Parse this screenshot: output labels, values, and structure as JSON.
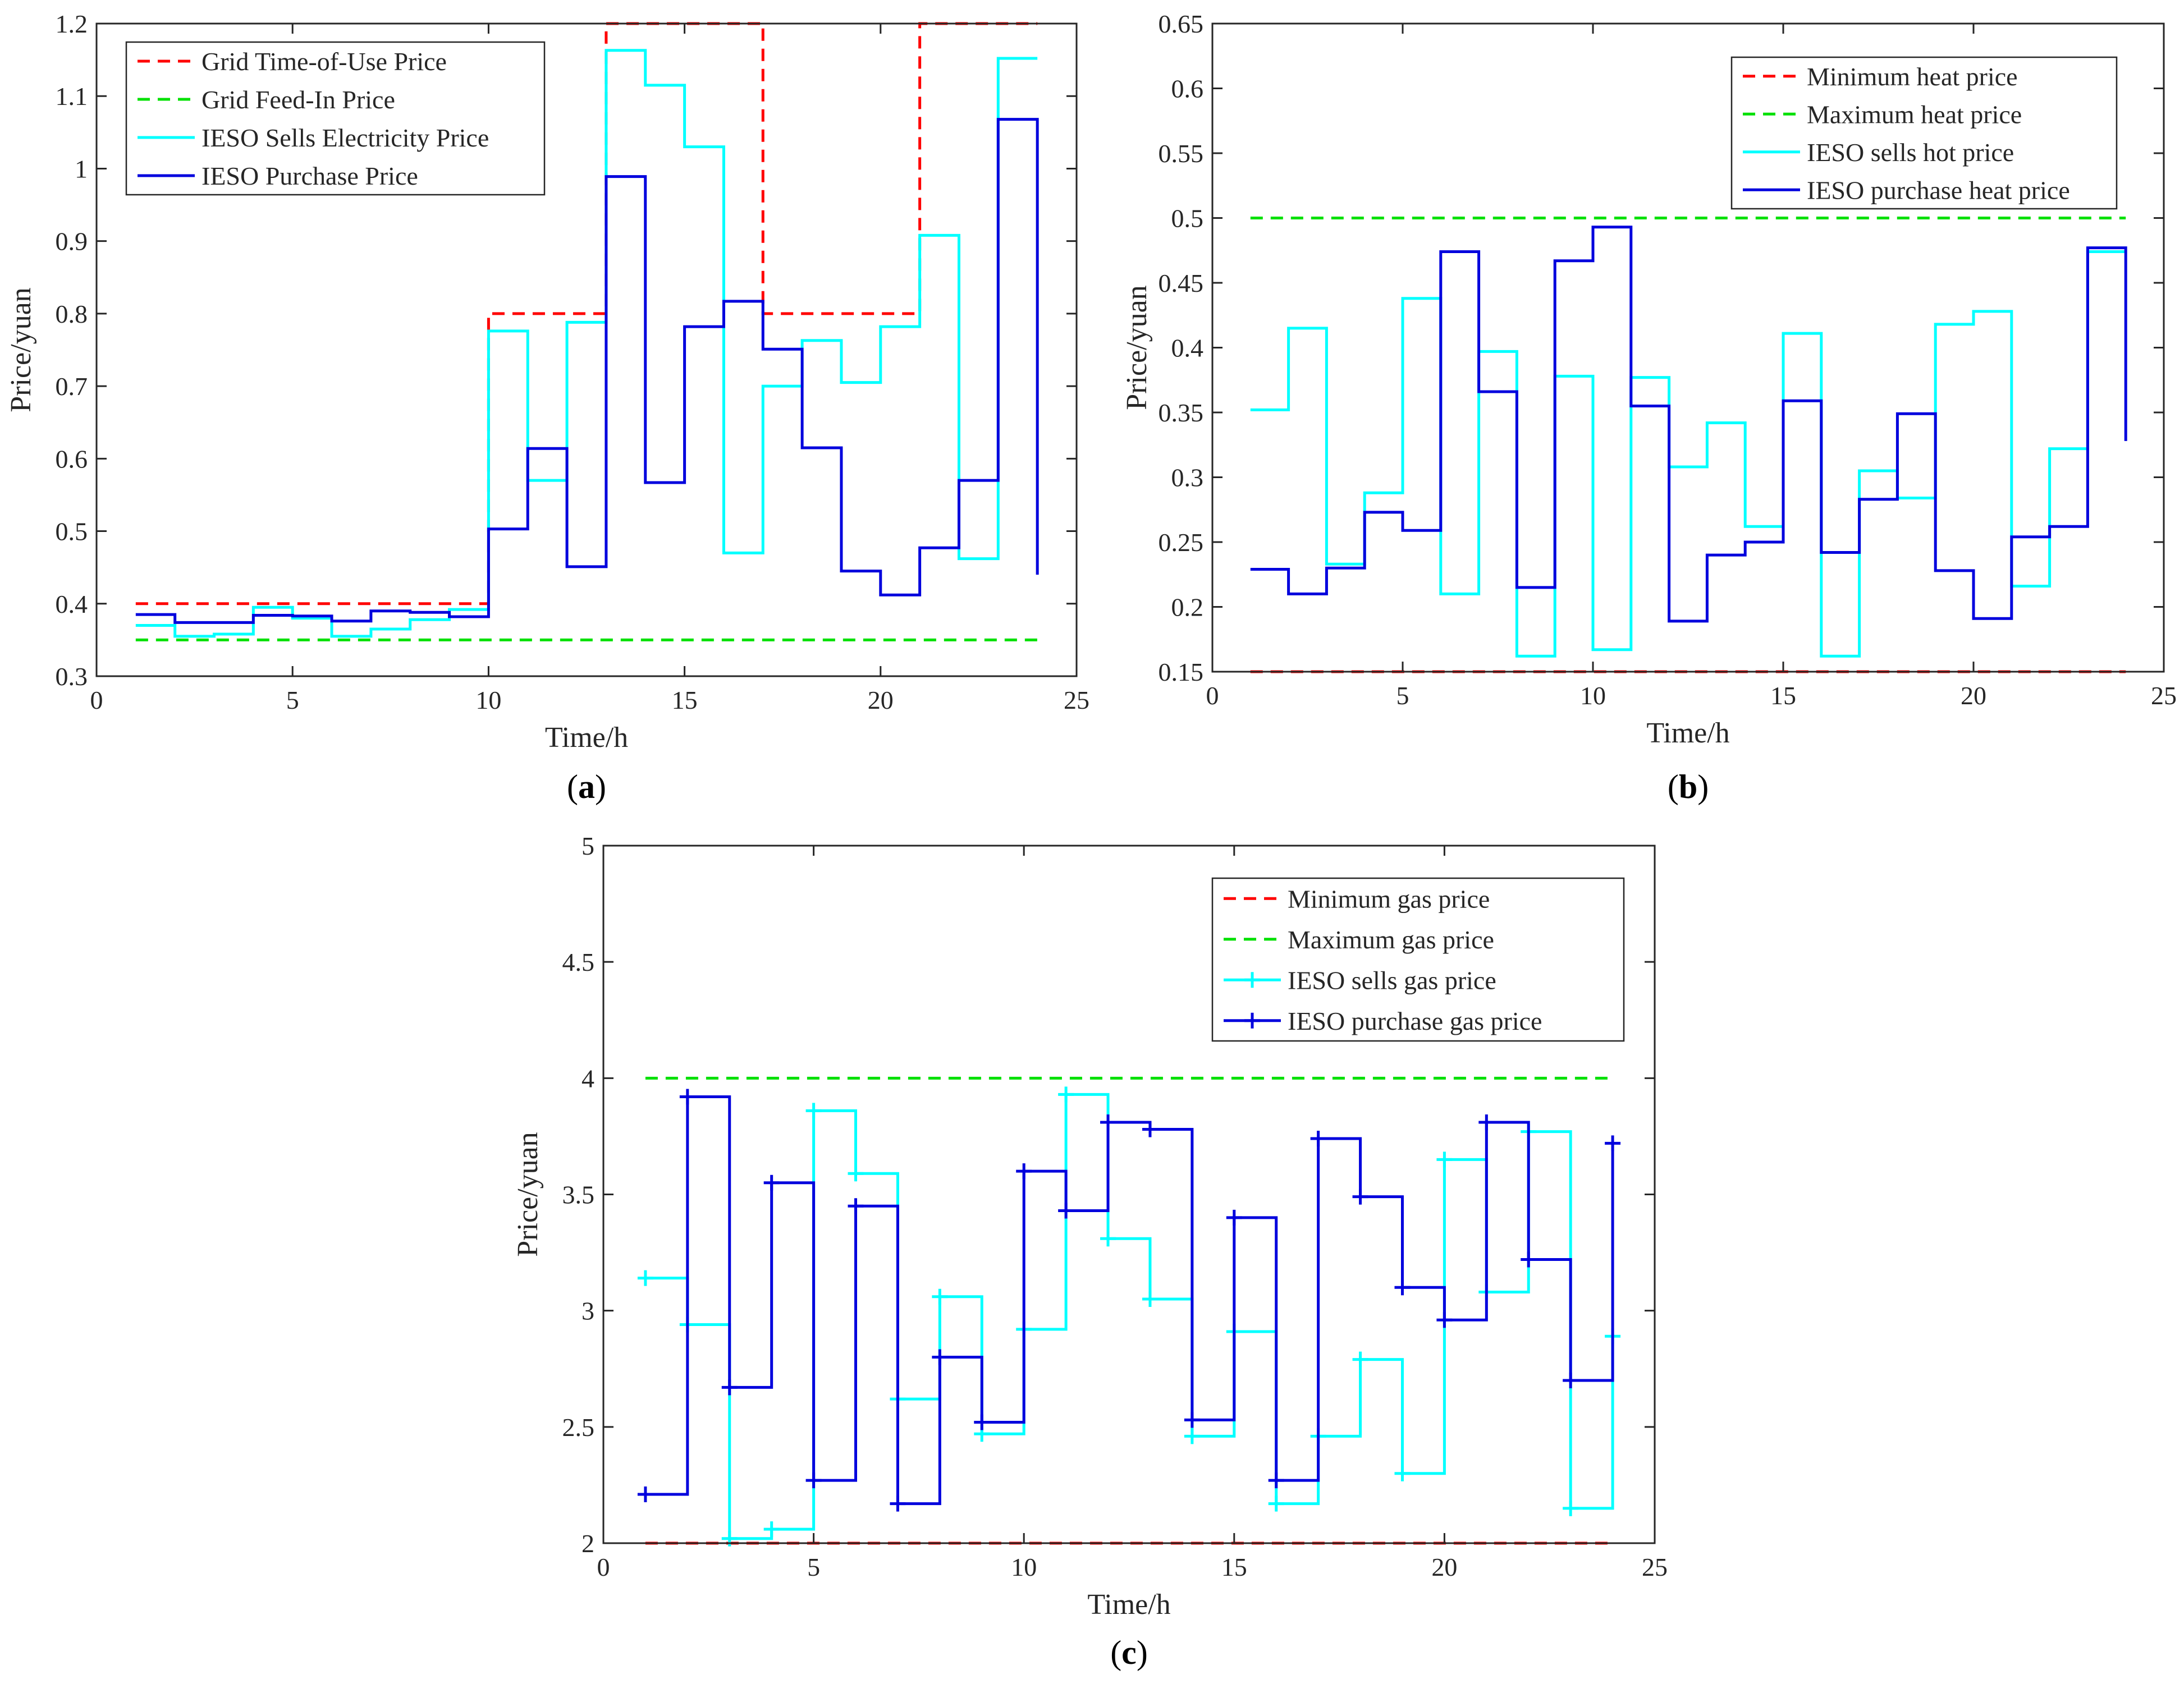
{
  "figure_title": "",
  "chart_data": [
    {
      "id": "a",
      "type": "line",
      "step": true,
      "caption": "(a)",
      "caption_letter": "a",
      "xlabel": "Time/h",
      "ylabel": "Price/yuan",
      "xlim": [
        0,
        25
      ],
      "ylim": [
        0.3,
        1.2
      ],
      "xticks": [
        0,
        5,
        10,
        15,
        20,
        25
      ],
      "yticks": [
        0.3,
        0.4,
        0.5,
        0.6,
        0.7,
        0.8,
        0.9,
        1,
        1.1,
        1.2
      ],
      "ytick_labels": [
        "0.3",
        "0.4",
        "0.5",
        "0.6",
        "0.7",
        "0.8",
        "0.9",
        "1",
        "1.1",
        "1.2"
      ],
      "legend_position": "top-left",
      "x": [
        1,
        2,
        3,
        4,
        5,
        6,
        7,
        8,
        9,
        10,
        11,
        12,
        13,
        14,
        15,
        16,
        17,
        18,
        19,
        20,
        21,
        22,
        23,
        24
      ],
      "series": [
        {
          "name": "Grid Time-of-Use Price",
          "color": "#ff0000",
          "style": "dashed",
          "values": [
            0.4,
            0.4,
            0.4,
            0.4,
            0.4,
            0.4,
            0.4,
            0.4,
            0.4,
            0.8,
            0.8,
            0.8,
            1.2,
            1.2,
            1.2,
            1.2,
            0.8,
            0.8,
            0.8,
            0.8,
            1.2,
            1.2,
            1.2,
            1.2
          ]
        },
        {
          "name": "Grid Feed-In Price",
          "color": "#00e000",
          "style": "dashed",
          "values": [
            0.35,
            0.35,
            0.35,
            0.35,
            0.35,
            0.35,
            0.35,
            0.35,
            0.35,
            0.35,
            0.35,
            0.35,
            0.35,
            0.35,
            0.35,
            0.35,
            0.35,
            0.35,
            0.35,
            0.35,
            0.35,
            0.35,
            0.35,
            0.35
          ]
        },
        {
          "name": "IESO Sells Electricity Price",
          "color": "#00ffff",
          "style": "solid",
          "values": [
            0.37,
            0.355,
            0.358,
            0.395,
            0.38,
            0.355,
            0.365,
            0.378,
            0.392,
            0.776,
            0.57,
            0.788,
            1.163,
            1.115,
            1.03,
            0.47,
            0.7,
            0.763,
            0.705,
            0.782,
            0.908,
            0.462,
            1.152,
            1.152
          ]
        },
        {
          "name": "IESO Purchase Price",
          "color": "#0000dd",
          "style": "solid",
          "values": [
            0.385,
            0.374,
            0.374,
            0.384,
            0.383,
            0.376,
            0.39,
            0.388,
            0.382,
            0.503,
            0.614,
            0.451,
            0.989,
            0.567,
            0.782,
            0.817,
            0.751,
            0.615,
            0.445,
            0.412,
            0.477,
            0.57,
            1.068,
            0.44
          ]
        }
      ]
    },
    {
      "id": "b",
      "type": "line",
      "step": true,
      "caption": "(b)",
      "caption_letter": "b",
      "xlabel": "Time/h",
      "ylabel": "Price/yuan",
      "xlim": [
        0,
        25
      ],
      "ylim": [
        0.15,
        0.65
      ],
      "xticks": [
        0,
        5,
        10,
        15,
        20,
        25
      ],
      "yticks": [
        0.15,
        0.2,
        0.25,
        0.3,
        0.35,
        0.4,
        0.45,
        0.5,
        0.55,
        0.6,
        0.65
      ],
      "ytick_labels": [
        "0.15",
        "0.2",
        "0.25",
        "0.3",
        "0.35",
        "0.4",
        "0.45",
        "0.5",
        "0.55",
        "0.6",
        "0.65"
      ],
      "legend_position": "top-right",
      "x": [
        1,
        2,
        3,
        4,
        5,
        6,
        7,
        8,
        9,
        10,
        11,
        12,
        13,
        14,
        15,
        16,
        17,
        18,
        19,
        20,
        21,
        22,
        23,
        24
      ],
      "series": [
        {
          "name": "Minimum heat price",
          "color": "#ff0000",
          "style": "dashed",
          "values": [
            0.15,
            0.15,
            0.15,
            0.15,
            0.15,
            0.15,
            0.15,
            0.15,
            0.15,
            0.15,
            0.15,
            0.15,
            0.15,
            0.15,
            0.15,
            0.15,
            0.15,
            0.15,
            0.15,
            0.15,
            0.15,
            0.15,
            0.15,
            0.15
          ]
        },
        {
          "name": "Maximum heat price",
          "color": "#00e000",
          "style": "dashed",
          "values": [
            0.5,
            0.5,
            0.5,
            0.5,
            0.5,
            0.5,
            0.5,
            0.5,
            0.5,
            0.5,
            0.5,
            0.5,
            0.5,
            0.5,
            0.5,
            0.5,
            0.5,
            0.5,
            0.5,
            0.5,
            0.5,
            0.5,
            0.5,
            0.5
          ]
        },
        {
          "name": "IESO sells hot price",
          "color": "#00ffff",
          "style": "solid",
          "values": [
            0.352,
            0.415,
            0.233,
            0.288,
            0.438,
            0.21,
            0.397,
            0.162,
            0.378,
            0.167,
            0.377,
            0.308,
            0.342,
            0.262,
            0.411,
            0.162,
            0.305,
            0.284,
            0.418,
            0.428,
            0.216,
            0.322,
            0.474,
            0.474
          ]
        },
        {
          "name": "IESO purchase heat price",
          "color": "#0000dd",
          "style": "solid",
          "values": [
            0.229,
            0.21,
            0.23,
            0.273,
            0.259,
            0.474,
            0.366,
            0.215,
            0.467,
            0.493,
            0.355,
            0.189,
            0.24,
            0.25,
            0.359,
            0.242,
            0.283,
            0.349,
            0.228,
            0.191,
            0.254,
            0.262,
            0.477,
            0.328
          ]
        }
      ]
    },
    {
      "id": "c",
      "type": "line",
      "step": true,
      "caption": "(c)",
      "caption_letter": "c",
      "xlabel": "Time/h",
      "ylabel": "Price/yuan",
      "xlim": [
        0,
        25
      ],
      "ylim": [
        2,
        5
      ],
      "xticks": [
        0,
        5,
        10,
        15,
        20,
        25
      ],
      "yticks": [
        2,
        2.5,
        3,
        3.5,
        4,
        4.5,
        5
      ],
      "ytick_labels": [
        "2",
        "2.5",
        "3",
        "3.5",
        "4",
        "4.5",
        "5"
      ],
      "legend_position": "top-right",
      "x": [
        1,
        2,
        3,
        4,
        5,
        6,
        7,
        8,
        9,
        10,
        11,
        12,
        13,
        14,
        15,
        16,
        17,
        18,
        19,
        20,
        21,
        22,
        23,
        24
      ],
      "series": [
        {
          "name": "Minimum gas price",
          "color": "#ff0000",
          "style": "dashed",
          "marker": "none",
          "values": [
            2,
            2,
            2,
            2,
            2,
            2,
            2,
            2,
            2,
            2,
            2,
            2,
            2,
            2,
            2,
            2,
            2,
            2,
            2,
            2,
            2,
            2,
            2,
            2
          ]
        },
        {
          "name": "Maximum gas price",
          "color": "#00e000",
          "style": "dashed",
          "marker": "none",
          "values": [
            4,
            4,
            4,
            4,
            4,
            4,
            4,
            4,
            4,
            4,
            4,
            4,
            4,
            4,
            4,
            4,
            4,
            4,
            4,
            4,
            4,
            4,
            4,
            4
          ]
        },
        {
          "name": "IESO sells gas price",
          "color": "#00ffff",
          "style": "solid",
          "marker": "plus",
          "values": [
            3.14,
            2.94,
            2.02,
            2.06,
            3.86,
            3.59,
            2.62,
            3.06,
            2.47,
            2.92,
            3.93,
            3.31,
            3.05,
            2.46,
            2.91,
            2.17,
            2.46,
            2.79,
            2.3,
            3.65,
            3.08,
            3.77,
            2.15,
            2.89
          ]
        },
        {
          "name": "IESO purchase gas price",
          "color": "#0000dd",
          "style": "solid",
          "marker": "plus",
          "values": [
            2.21,
            3.92,
            2.67,
            3.55,
            2.27,
            3.45,
            2.17,
            2.8,
            2.52,
            3.6,
            3.43,
            3.81,
            3.78,
            2.53,
            3.4,
            2.27,
            3.74,
            3.49,
            3.1,
            2.96,
            3.81,
            3.22,
            2.7,
            3.72
          ]
        }
      ]
    }
  ]
}
